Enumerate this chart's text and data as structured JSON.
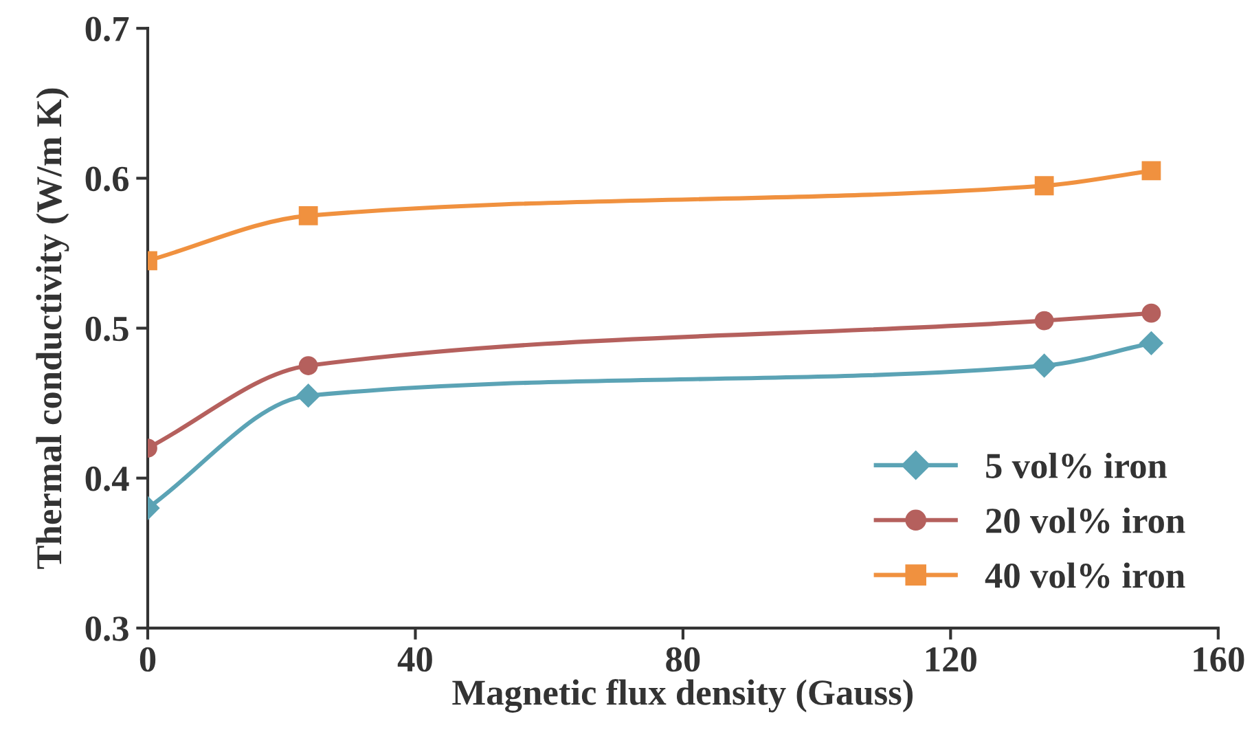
{
  "chart_data": {
    "type": "line",
    "xlabel": "Magnetic flux density (Gauss)",
    "ylabel": "Thermal conductivity (W/m K)",
    "xlim": [
      0,
      160
    ],
    "xticks": [
      0,
      40,
      80,
      120,
      160
    ],
    "ylim": [
      0.3,
      0.7
    ],
    "yticks": [
      0.3,
      0.4,
      0.5,
      0.6,
      0.7
    ],
    "x": [
      0,
      24,
      134,
      150
    ],
    "grid": false,
    "legend": "bottom right",
    "line_style": "solid",
    "series": [
      {
        "name": "5 vol% iron",
        "color": "#5ba3b5",
        "marker": "diamond",
        "values": [
          0.38,
          0.455,
          0.475,
          0.49
        ]
      },
      {
        "name": "20 vol% iron",
        "color": "#b5605d",
        "marker": "circle",
        "values": [
          0.42,
          0.475,
          0.505,
          0.51
        ]
      },
      {
        "name": "40 vol% iron",
        "color": "#f0913f",
        "marker": "square",
        "values": [
          0.545,
          0.575,
          0.595,
          0.605
        ]
      }
    ]
  }
}
